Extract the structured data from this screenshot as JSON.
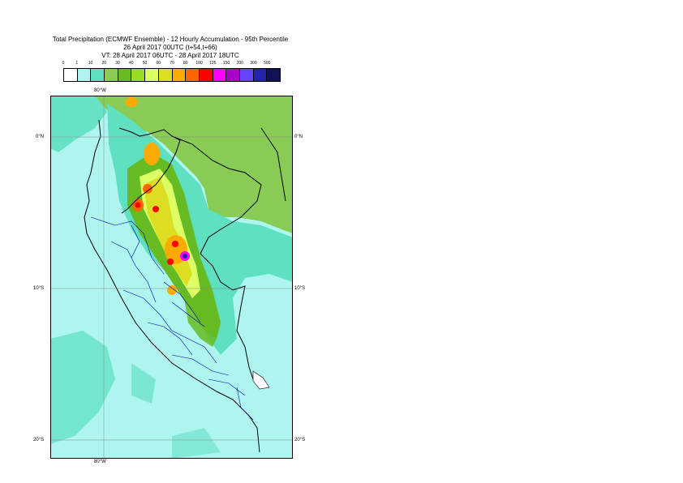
{
  "title": {
    "line1": "Total Precipitation (ECMWF Ensemble) - 12 Hourly Accumulation - 95th Percentile",
    "line2": "26 April 2017 00UTC (t+54,t+66)",
    "line3": "VT: 28 April 2017 06UTC - 28 April 2017 18UTC"
  },
  "legend": {
    "thresholds": [
      "0",
      "1",
      "10",
      "20",
      "30",
      "40",
      "50",
      "60",
      "70",
      "80",
      "100",
      "125",
      "150",
      "200",
      "300",
      "500"
    ],
    "colors": [
      "#ffffff",
      "#aef5f0",
      "#5fe0c0",
      "#88cc55",
      "#66bb22",
      "#99dd22",
      "#ddff66",
      "#dddd22",
      "#ffaa00",
      "#ff6600",
      "#ff0000",
      "#ff00ff",
      "#aa00cc",
      "#6644ff",
      "#2222aa",
      "#111155"
    ]
  },
  "axes": {
    "lon_top": "80°W",
    "lon_bottom": "80°W",
    "lat_right_0": "0°N",
    "lat_right_10": "10°S",
    "lat_right_20": "20°S",
    "lat_left_0": "0°N",
    "lat_left_10": "10°S",
    "lat_left_20": "20°S"
  },
  "map": {
    "ocean_color": "#aef5f0",
    "land_light_color": "#5fe0c0",
    "land_green_color": "#88cc55",
    "boundary_color": "#000000",
    "dept_boundary_color": "#0000aa"
  }
}
